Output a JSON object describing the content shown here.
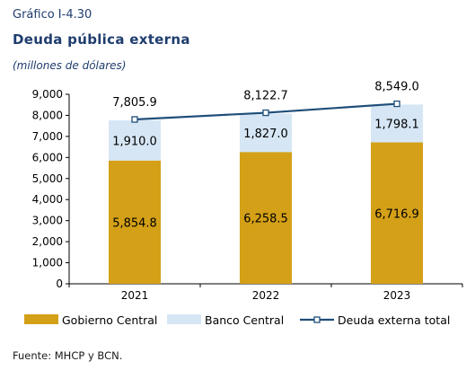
{
  "header": {
    "figure_label": "Gráfico I-4.30",
    "title": "Deuda pública externa",
    "unit": "(millones de dólares)"
  },
  "source": "Fuente: MHCP y BCN.",
  "colors": {
    "gobierno": "#d4a017",
    "banco": "#d6e6f5",
    "line": "#1f4e79",
    "axis": "#000000"
  },
  "chart_data": {
    "type": "bar",
    "stacked": true,
    "categories": [
      "2021",
      "2022",
      "2023"
    ],
    "series": [
      {
        "name": "Gobierno Central",
        "type": "bar",
        "values": [
          5854.8,
          6258.5,
          6716.9
        ],
        "labels": [
          "5,854.8",
          "6,258.5",
          "6,716.9"
        ]
      },
      {
        "name": "Banco Central",
        "type": "bar",
        "values": [
          1910.0,
          1827.0,
          1798.1
        ],
        "labels": [
          "1,910.0",
          "1,827.0",
          "1,798.1"
        ]
      },
      {
        "name": "Deuda externa total",
        "type": "line",
        "values": [
          7805.9,
          8122.7,
          8549.0
        ],
        "labels": [
          "7,805.9",
          "8,122.7",
          "8,549.0"
        ]
      }
    ],
    "ylim": [
      0,
      9000
    ],
    "yticks": [
      0,
      1000,
      2000,
      3000,
      4000,
      5000,
      6000,
      7000,
      8000,
      9000
    ],
    "ytick_labels": [
      "0",
      "1,000",
      "2,000",
      "3,000",
      "4,000",
      "5,000",
      "6,000",
      "7,000",
      "8,000",
      "9,000"
    ],
    "xlabel": "",
    "ylabel": "",
    "grid": false,
    "legend_position": "bottom"
  }
}
